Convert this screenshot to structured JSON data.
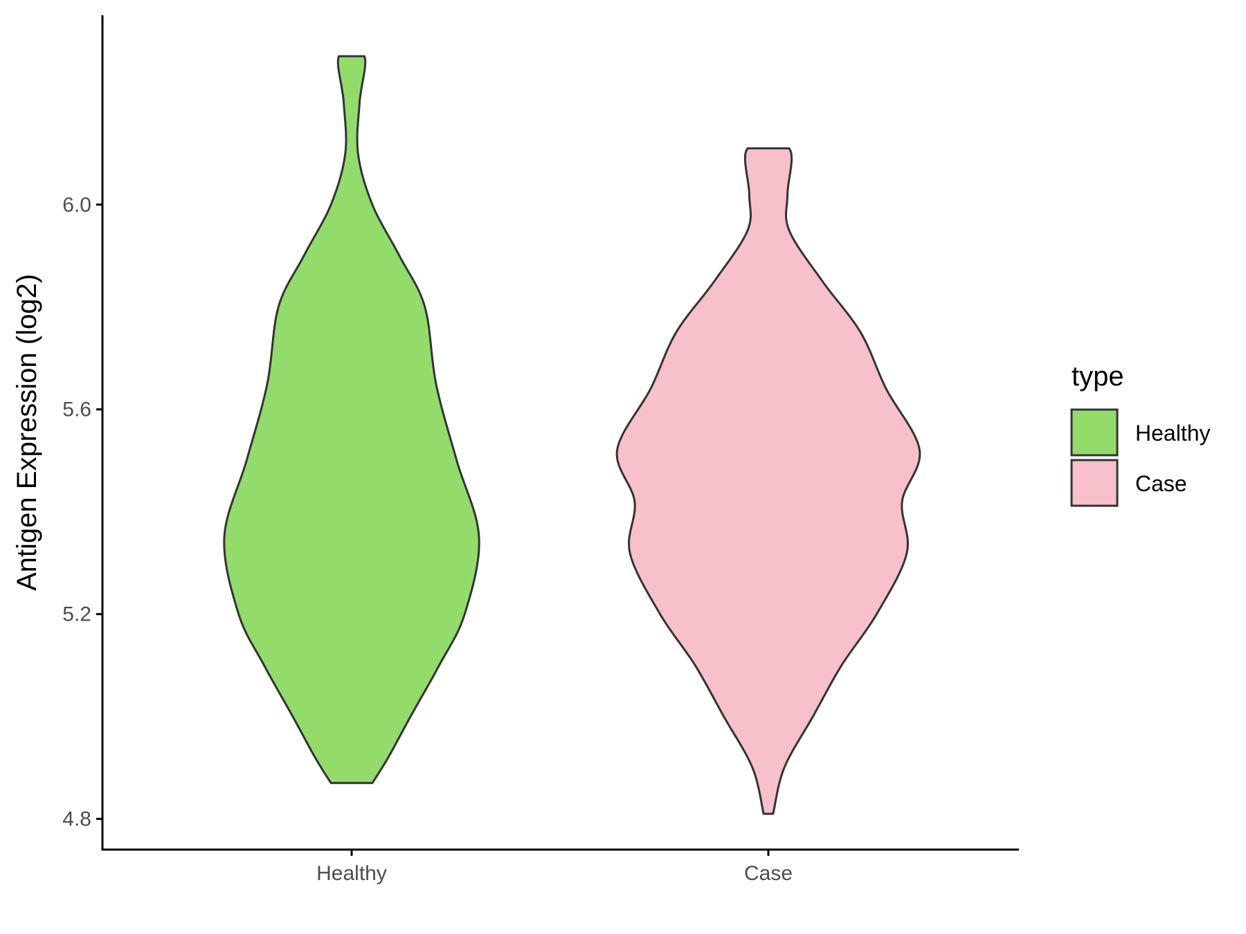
{
  "chart_data": {
    "type": "violin",
    "title": "",
    "xlabel": "",
    "ylabel": "Antigen Expression (log2)",
    "ylim": [
      4.74,
      6.37
    ],
    "yticks": [
      4.8,
      5.2,
      5.6,
      6.0
    ],
    "ytick_labels": [
      "4.8",
      "5.2",
      "5.6",
      "6.0"
    ],
    "categories": [
      "Healthy",
      "Case"
    ],
    "grid": false,
    "legend": {
      "title": "type",
      "position": "right",
      "entries": [
        "Healthy",
        "Case"
      ]
    },
    "series": [
      {
        "name": "Healthy",
        "color": "#93dc6c",
        "min": 4.87,
        "max": 6.29,
        "density_profile": [
          [
            4.87,
            0.13
          ],
          [
            4.92,
            0.23
          ],
          [
            5.0,
            0.37
          ],
          [
            5.1,
            0.55
          ],
          [
            5.2,
            0.71
          ],
          [
            5.35,
            0.8
          ],
          [
            5.5,
            0.66
          ],
          [
            5.65,
            0.53
          ],
          [
            5.8,
            0.46
          ],
          [
            5.9,
            0.3
          ],
          [
            6.0,
            0.13
          ],
          [
            6.1,
            0.04
          ],
          [
            6.2,
            0.05
          ],
          [
            6.29,
            0.08
          ]
        ]
      },
      {
        "name": "Case",
        "color": "#f7c0cb",
        "min": 4.81,
        "max": 6.11,
        "density_profile": [
          [
            4.81,
            0.03
          ],
          [
            4.9,
            0.1
          ],
          [
            5.0,
            0.28
          ],
          [
            5.1,
            0.46
          ],
          [
            5.2,
            0.68
          ],
          [
            5.32,
            0.87
          ],
          [
            5.42,
            0.84
          ],
          [
            5.52,
            0.95
          ],
          [
            5.64,
            0.74
          ],
          [
            5.75,
            0.58
          ],
          [
            5.85,
            0.34
          ],
          [
            5.95,
            0.13
          ],
          [
            6.02,
            0.12
          ],
          [
            6.11,
            0.13
          ]
        ]
      }
    ]
  }
}
